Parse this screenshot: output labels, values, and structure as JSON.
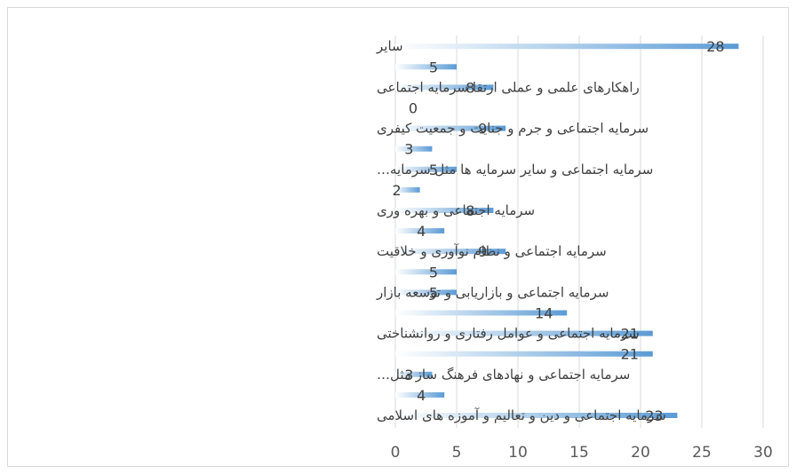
{
  "chart_data": {
    "type": "bar",
    "orientation": "horizontal",
    "title": "",
    "xlabel": "",
    "ylabel": "",
    "xlim": [
      0,
      30
    ],
    "x_ticks": [
      "0",
      "5",
      "10",
      "15",
      "20",
      "25",
      "30"
    ],
    "grid": "vertical",
    "legend": "none",
    "bar_color": "#5b9bd5",
    "categories": [
      "سرمایه اجتماعی و دین و تعالیم و آموزه های اسلامی",
      "",
      "سرمایه اجتماعی و نهادهای فرهنگ ساز مثل…",
      "",
      "سرمایه اجتماعی و عوامل رفتاری و روانشناختی",
      "",
      "سرمایه اجتماعی و بازاریابی و توسعه بازار",
      "",
      "سرمایه اجتماعی و نظام نوآوری و خلاقیت",
      "",
      "سرمایه اجتماعی و بهره وری",
      "",
      "سرمایه اجتماعی و سایر سرمایه ها مثل سرمایه…",
      "",
      "سرمایه اجتماعی و جرم و جنایت و جمعیت کیفری",
      "",
      "راهکارهای علمی و عملی ارتقا سرمایه اجتماعی",
      "",
      "سایر"
    ],
    "values": [
      23,
      4,
      3,
      21,
      21,
      14,
      5,
      5,
      9,
      4,
      8,
      2,
      5,
      3,
      9,
      0,
      8,
      5,
      28
    ],
    "data_labels": [
      "23",
      "4",
      "3",
      "21",
      "21",
      "14",
      "5",
      "5",
      "9",
      "4",
      "8",
      "2",
      "5",
      "3",
      "9",
      "0",
      "8",
      "5",
      "28"
    ]
  }
}
